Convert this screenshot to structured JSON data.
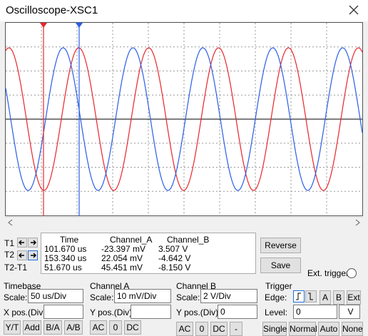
{
  "window": {
    "title": "Oscilloscope-XSC1"
  },
  "cursors": {
    "headers": [
      "Time",
      "Channel_A",
      "Channel_B"
    ],
    "rows": [
      {
        "label": "T1",
        "values": [
          "101.670 us",
          "-23.397 mV",
          "3.507 V"
        ]
      },
      {
        "label": "T2",
        "values": [
          "153.340 us",
          "22.054 mV",
          "-4.642 V"
        ]
      },
      {
        "label": "T2-T1",
        "values": [
          "51.670 us",
          "45.451 mV",
          "-8.150 V"
        ]
      }
    ]
  },
  "buttons": [
    "Reverse",
    "Save"
  ],
  "ext_trigger": "Ext. trigger",
  "timebase": {
    "title": "Timebase",
    "scale_label": "Scale:",
    "scale": "50 us/Div",
    "pos_label": "X pos.(Div):",
    "modes": [
      "Y/T",
      "Add",
      "B/A",
      "A/B"
    ]
  },
  "channel_a": {
    "title": "Channel A",
    "scale_label": "Scale:",
    "scale": "10 mV/Div",
    "pos_label": "Y pos.(Div):",
    "coupling": [
      "AC",
      "0",
      "DC"
    ]
  },
  "channel_b": {
    "title": "Channel B",
    "scale_label": "Scale:",
    "scale": "2  V/Div",
    "pos_label": "Y pos.(Div):",
    "pos": "0",
    "coupling": [
      "AC",
      "0",
      "DC",
      "-"
    ]
  },
  "trigger": {
    "title": "Trigger",
    "edge_label": "Edge:",
    "sources": [
      "A",
      "B",
      "Ext"
    ],
    "level_label": "Level:",
    "level": "0",
    "level_unit": "V",
    "modes": [
      "Single",
      "Normal",
      "Auto",
      "None"
    ]
  }
}
